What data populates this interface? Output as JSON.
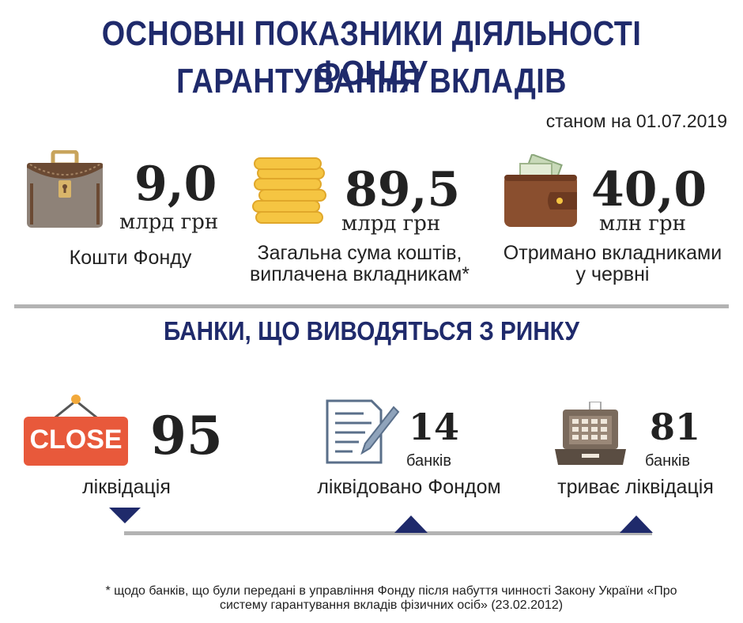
{
  "title": {
    "line1": "ОСНОВНІ ПОКАЗНИКИ ДІЯЛЬНОСТІ ФОНДУ",
    "line2": "ГАРАНТУВАННЯ ВКЛАДІВ"
  },
  "date": "станом на 01.07.2019",
  "stats": [
    {
      "icon": "briefcase-icon",
      "value": "9,0",
      "unit": "млрд грн",
      "label": "Кошти Фонду"
    },
    {
      "icon": "coins-icon",
      "value": "89,5",
      "unit": "млрд грн",
      "label_line1": "Загальна сума коштів,",
      "label_line2": "виплачена вкладникам*"
    },
    {
      "icon": "wallet-icon",
      "value": "40,0",
      "unit": "млн грн",
      "label_line1": "Отримано вкладниками",
      "label_line2": "у червні"
    }
  ],
  "banks": {
    "heading": "БАНКИ, ЩО ВИВОДЯТЬСЯ З РИНКУ",
    "close_sign": "CLOSE",
    "items": [
      {
        "value": "95",
        "label": "ліквідація"
      },
      {
        "value": "14",
        "unit": "банків",
        "label": "ліквідовано Фондом"
      },
      {
        "value": "81",
        "unit": "банків",
        "label": "триває ліквідація"
      }
    ]
  },
  "footnote": {
    "line1": "* щодо банків, що були передані в управління Фонду після набуття чинності Закону України «Про",
    "line2": "систему гарантування вкладів фізичних осіб» (23.02.2012)"
  },
  "colors": {
    "navy": "#1f2a6b",
    "gray": "#b3b3b3",
    "close_red": "#e8593b"
  }
}
